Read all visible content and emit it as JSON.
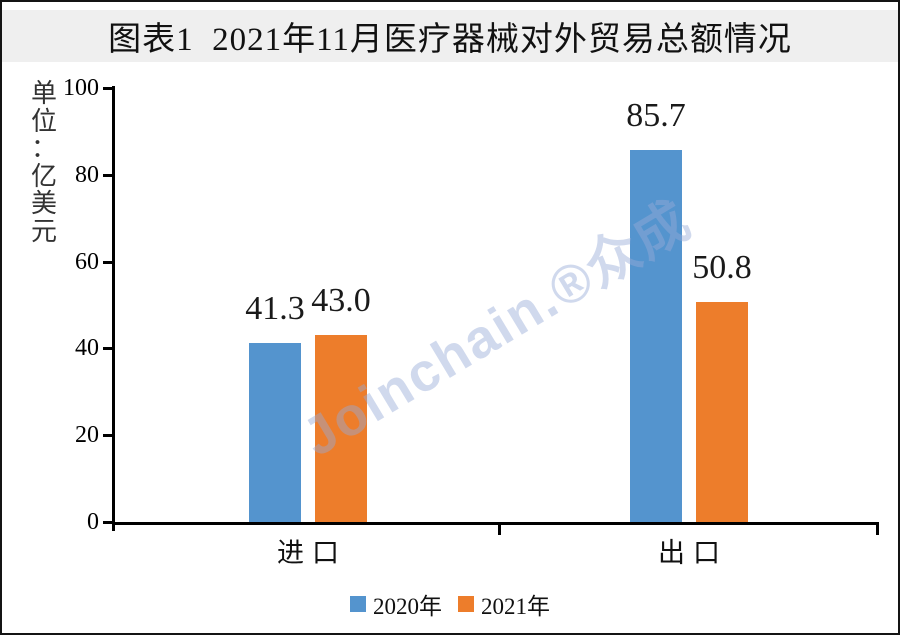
{
  "title": "图表1  2021年11月医疗器械对外贸易总额情况",
  "watermark_text": "Joinchain.®众成",
  "chart_data": {
    "type": "bar",
    "title": "图表1  2021年11月医疗器械对外贸易总额情况",
    "unit_label": "单位：亿美元",
    "categories": [
      "进口",
      "出口"
    ],
    "series": [
      {
        "name": "2020年",
        "color": "#5494CE",
        "values": [
          41.3,
          85.7
        ],
        "labels": [
          "41.3",
          "85.7"
        ]
      },
      {
        "name": "2021年",
        "color": "#ED7D2B",
        "values": [
          43.0,
          50.8
        ],
        "labels": [
          "43.0",
          "50.8"
        ]
      }
    ],
    "ylim": [
      0,
      100
    ],
    "yticks": [
      0,
      20,
      40,
      60,
      80,
      100
    ],
    "grid": false,
    "legend_position": "bottom"
  },
  "colors": {
    "title_band_bg": "#EFEFEF",
    "title_text": "#111111",
    "axis": "#000000",
    "bar_blue": "#5494CE",
    "bar_orange": "#ED7D2B",
    "watermark": "#96AAD6",
    "frame_border": "#141414"
  }
}
